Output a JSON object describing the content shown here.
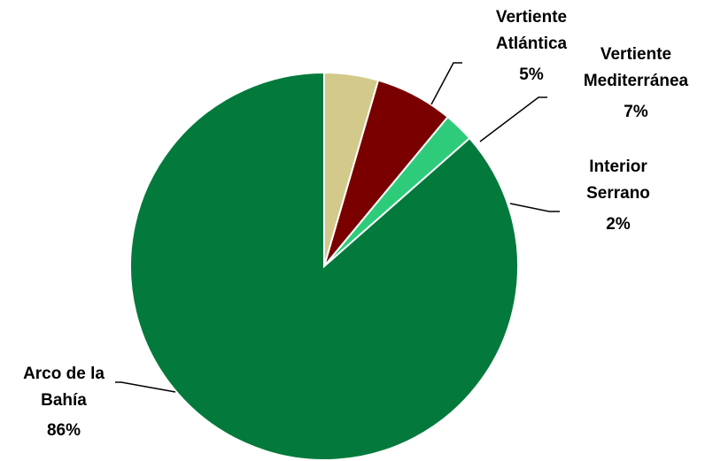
{
  "chart_data": {
    "type": "pie",
    "title": "",
    "legend": "none",
    "start_angle_deg": 90,
    "direction": "clockwise",
    "slices": [
      {
        "name": "Vertiente Atlántica",
        "label_lines": [
          "Vertiente",
          "Atlántica"
        ],
        "percent_label": "5%",
        "value": 4.5,
        "color": "#D2C98A"
      },
      {
        "name": "Vertiente Mediterránea",
        "label_lines": [
          "Vertiente",
          "Mediterránea"
        ],
        "percent_label": "7%",
        "value": 6.5,
        "color": "#7A0000"
      },
      {
        "name": "Interior Serrano",
        "label_lines": [
          "Interior",
          "Serrano"
        ],
        "percent_label": "2%",
        "value": 2.5,
        "color": "#2ECC7A"
      },
      {
        "name": "Arco de la Bahía",
        "label_lines": [
          "Arco de la",
          "Bahía"
        ],
        "percent_label": "86%",
        "value": 86.5,
        "color": "#037A3C"
      }
    ]
  }
}
